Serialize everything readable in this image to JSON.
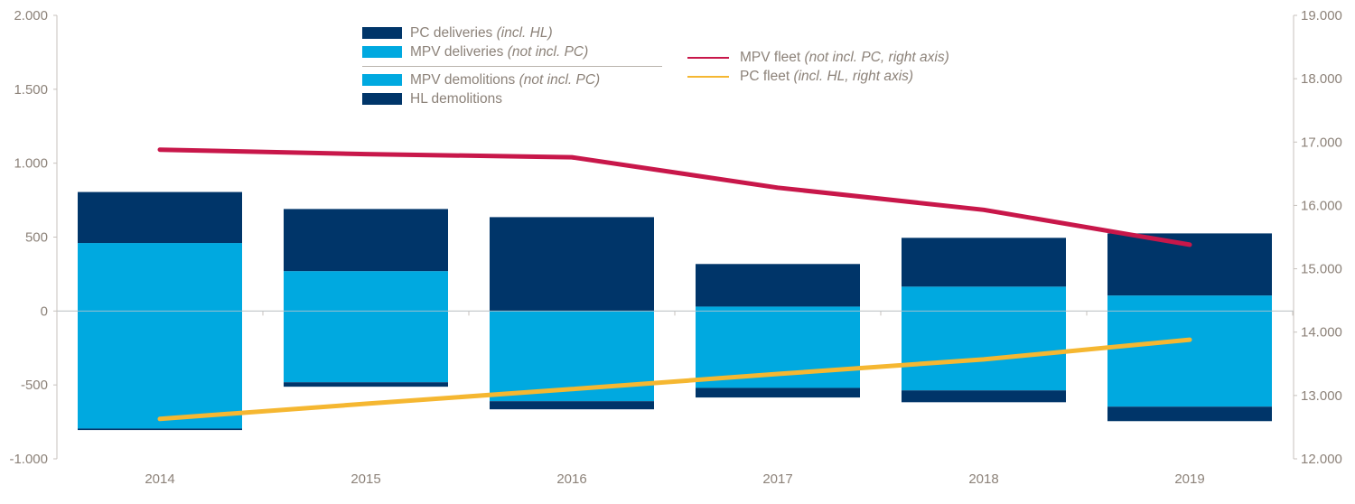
{
  "chart_data": {
    "type": "bar",
    "subtype": "stacked bar with dual-axis lines",
    "title": "",
    "xlabel": "",
    "ylabel": "",
    "categories": [
      "2014",
      "2015",
      "2016",
      "2017",
      "2018",
      "2019"
    ],
    "y_left": {
      "range": [
        -1000,
        2000
      ],
      "ticks": [
        2000,
        1500,
        1000,
        500,
        0,
        -500,
        -1000
      ],
      "tick_labels": [
        "2.000",
        "1.500",
        "1.000",
        "500",
        "0",
        "-500",
        "-1.000"
      ]
    },
    "y_right": {
      "range": [
        12000,
        19000
      ],
      "ticks": [
        19000,
        18000,
        17000,
        16000,
        15000,
        14000,
        13000,
        12000
      ],
      "tick_labels": [
        "19.000",
        "18.000",
        "17.000",
        "16.000",
        "15.000",
        "14.000",
        "13.000",
        "12.000"
      ]
    },
    "grid": false,
    "series": [
      {
        "name": "MPV deliveries",
        "name_note": "(not incl. PC)",
        "type": "bar",
        "axis": "left",
        "stack": "positive",
        "color": "#00a9e0",
        "values": [
          460,
          270,
          0,
          30,
          165,
          105
        ]
      },
      {
        "name": "PC deliveries",
        "name_note": "(incl. HL)",
        "type": "bar",
        "axis": "left",
        "stack": "positive",
        "color": "#003569",
        "values": [
          345,
          420,
          635,
          288,
          330,
          420
        ]
      },
      {
        "name": "MPV demolitions",
        "name_note": "(not incl. PC)",
        "type": "bar",
        "axis": "left",
        "stack": "negative",
        "color": "#00a9e0",
        "values": [
          -795,
          -482,
          -610,
          -520,
          -537,
          -647
        ]
      },
      {
        "name": "HL demolitions",
        "name_note": "",
        "type": "bar",
        "axis": "left",
        "stack": "negative",
        "color": "#003569",
        "values": [
          -10,
          -30,
          -55,
          -65,
          -80,
          -98
        ]
      },
      {
        "name": "MPV fleet",
        "name_note": "(not incl. PC, right axis)",
        "type": "line",
        "axis": "right",
        "color": "#c8174a",
        "values": [
          16880,
          16810,
          16760,
          16280,
          15930,
          15380
        ]
      },
      {
        "name": "PC fleet",
        "name_note": "(incl. HL, right axis)",
        "type": "line",
        "axis": "right",
        "color": "#f5b731",
        "values": [
          12630,
          12870,
          13100,
          13340,
          13570,
          13880
        ]
      }
    ],
    "legend": {
      "placement": "top-center",
      "bar_group_1": [
        {
          "label": "PC deliveries",
          "note": "(incl. HL)",
          "color": "#003569"
        },
        {
          "label": "MPV deliveries",
          "note": "(not incl. PC)",
          "color": "#00a9e0"
        }
      ],
      "bar_group_2": [
        {
          "label": "MPV demolitions",
          "note": "(not incl. PC)",
          "color": "#00a9e0"
        },
        {
          "label": "HL demolitions",
          "note": "",
          "color": "#003569"
        }
      ],
      "lines": [
        {
          "label": "MPV fleet",
          "note": "(not incl. PC, right axis)",
          "color": "#c8174a"
        },
        {
          "label": "PC fleet",
          "note": "(incl. HL, right axis)",
          "color": "#f5b731"
        }
      ]
    }
  }
}
